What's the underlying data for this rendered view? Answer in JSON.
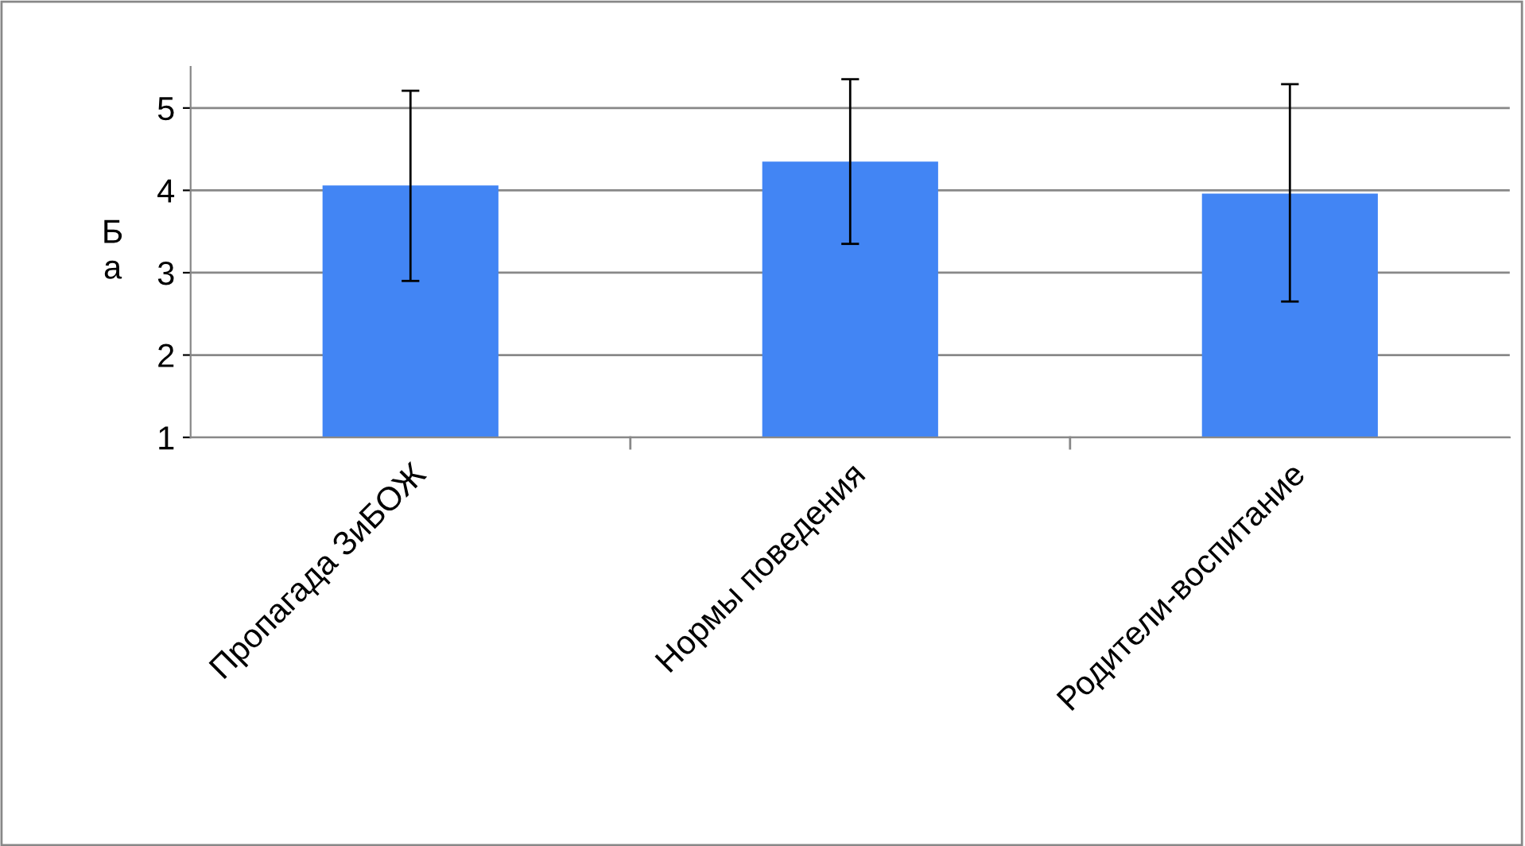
{
  "chart_data": {
    "type": "bar",
    "ylabel": "Ба",
    "categories": [
      "Пропагада ЗиБОЖ",
      "Нормы поведения",
      "Родители-воспитание"
    ],
    "values": [
      4.06,
      4.35,
      3.96
    ],
    "errors": [
      [
        2.9,
        5.21
      ],
      [
        3.35,
        5.35
      ],
      [
        2.65,
        5.29
      ]
    ],
    "color": "#4285f4",
    "ylim": [
      1,
      5.5
    ],
    "yticks": [
      1,
      2,
      3,
      4,
      5
    ],
    "grid": "y",
    "legend": false
  }
}
